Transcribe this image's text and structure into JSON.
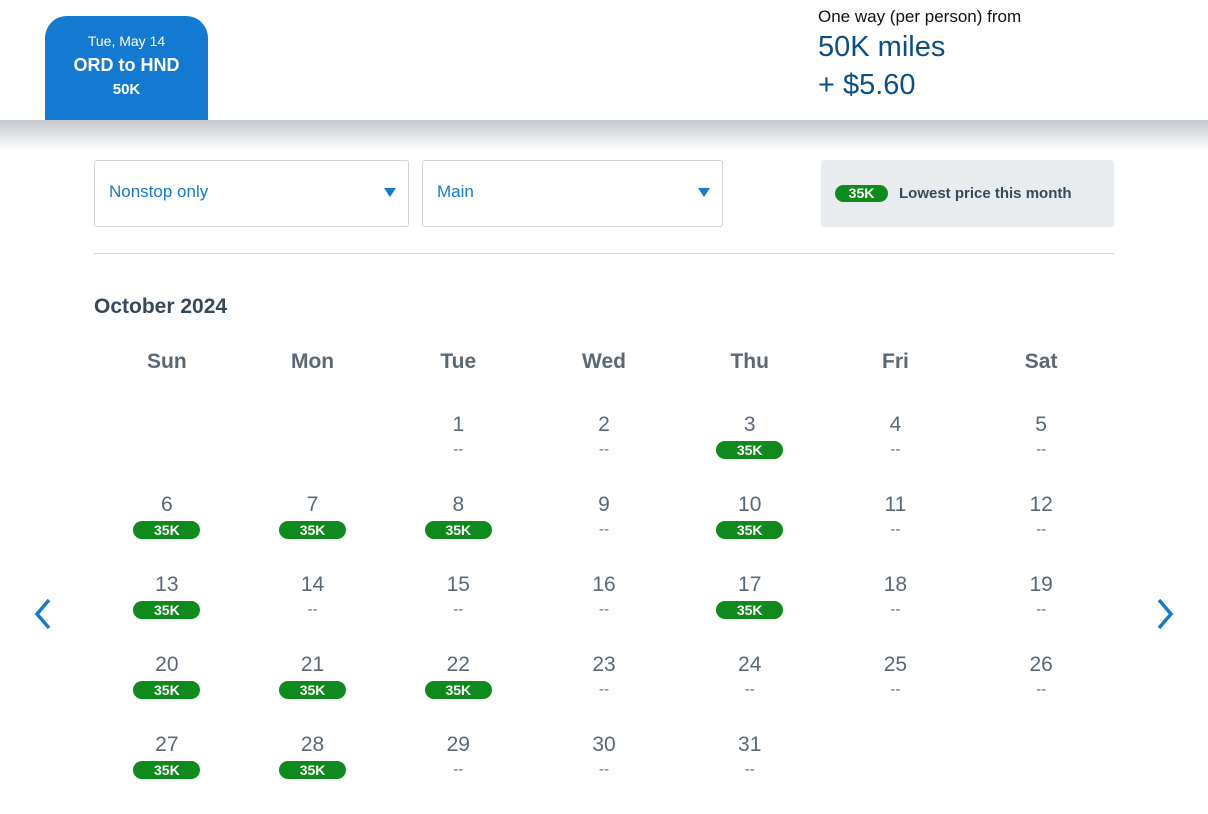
{
  "header": {
    "tab": {
      "date": "Tue, May 14",
      "route": "ORD to HND",
      "price": "50K"
    },
    "fare": {
      "label": "One way (per person) from",
      "miles": "50K miles",
      "tax": "+ $5.60"
    }
  },
  "filters": {
    "stops": "Nonstop only",
    "cabin": "Main"
  },
  "legend": {
    "badge": "35K",
    "label": "Lowest price this month"
  },
  "colors": {
    "brand": "#1479d1",
    "lowest": "#0f8b1d"
  },
  "calendar": {
    "month": "October 2024",
    "weekdays": [
      "Sun",
      "Mon",
      "Tue",
      "Wed",
      "Thu",
      "Fri",
      "Sat"
    ],
    "start_offset": 2,
    "days": [
      {
        "day": "1",
        "price": "--"
      },
      {
        "day": "2",
        "price": "--"
      },
      {
        "day": "3",
        "price": "35K",
        "lowest": true
      },
      {
        "day": "4",
        "price": "--"
      },
      {
        "day": "5",
        "price": "--"
      },
      {
        "day": "6",
        "price": "35K",
        "lowest": true
      },
      {
        "day": "7",
        "price": "35K",
        "lowest": true
      },
      {
        "day": "8",
        "price": "35K",
        "lowest": true
      },
      {
        "day": "9",
        "price": "--"
      },
      {
        "day": "10",
        "price": "35K",
        "lowest": true
      },
      {
        "day": "11",
        "price": "--"
      },
      {
        "day": "12",
        "price": "--"
      },
      {
        "day": "13",
        "price": "35K",
        "lowest": true
      },
      {
        "day": "14",
        "price": "--"
      },
      {
        "day": "15",
        "price": "--"
      },
      {
        "day": "16",
        "price": "--"
      },
      {
        "day": "17",
        "price": "35K",
        "lowest": true
      },
      {
        "day": "18",
        "price": "--"
      },
      {
        "day": "19",
        "price": "--"
      },
      {
        "day": "20",
        "price": "35K",
        "lowest": true
      },
      {
        "day": "21",
        "price": "35K",
        "lowest": true
      },
      {
        "day": "22",
        "price": "35K",
        "lowest": true
      },
      {
        "day": "23",
        "price": "--"
      },
      {
        "day": "24",
        "price": "--"
      },
      {
        "day": "25",
        "price": "--"
      },
      {
        "day": "26",
        "price": "--"
      },
      {
        "day": "27",
        "price": "35K",
        "lowest": true
      },
      {
        "day": "28",
        "price": "35K",
        "lowest": true
      },
      {
        "day": "29",
        "price": "--"
      },
      {
        "day": "30",
        "price": "--"
      },
      {
        "day": "31",
        "price": "--"
      }
    ]
  },
  "nav": {
    "prev_icon": "chevron-left-icon",
    "next_icon": "chevron-right-icon"
  }
}
